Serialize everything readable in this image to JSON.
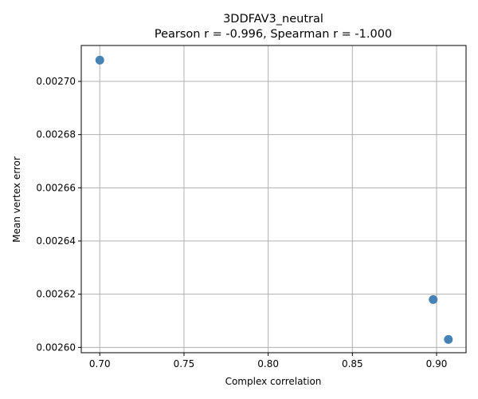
{
  "chart_data": {
    "type": "scatter",
    "title": "3DDFAV3_neutral",
    "subtitle": "Pearson r = -0.996, Spearman r = -1.000",
    "xlabel": "Complex correlation",
    "ylabel": "Mean vertex error",
    "xlim": [
      0.689,
      0.9175
    ],
    "ylim": [
      0.002598,
      0.0027135
    ],
    "x_ticks": [
      "0.70",
      "0.75",
      "0.80",
      "0.85",
      "0.90"
    ],
    "x_tick_values": [
      0.7,
      0.75,
      0.8,
      0.85,
      0.9
    ],
    "y_ticks": [
      "0.00260",
      "0.00262",
      "0.00264",
      "0.00266",
      "0.00268",
      "0.00270"
    ],
    "y_tick_values": [
      0.0026,
      0.00262,
      0.00264,
      0.00266,
      0.00268,
      0.0027
    ],
    "grid": true,
    "points": [
      {
        "x": 0.7,
        "y": 0.002708
      },
      {
        "x": 0.898,
        "y": 0.002618
      },
      {
        "x": 0.907,
        "y": 0.002603
      }
    ],
    "point_color": "#4682b4"
  }
}
